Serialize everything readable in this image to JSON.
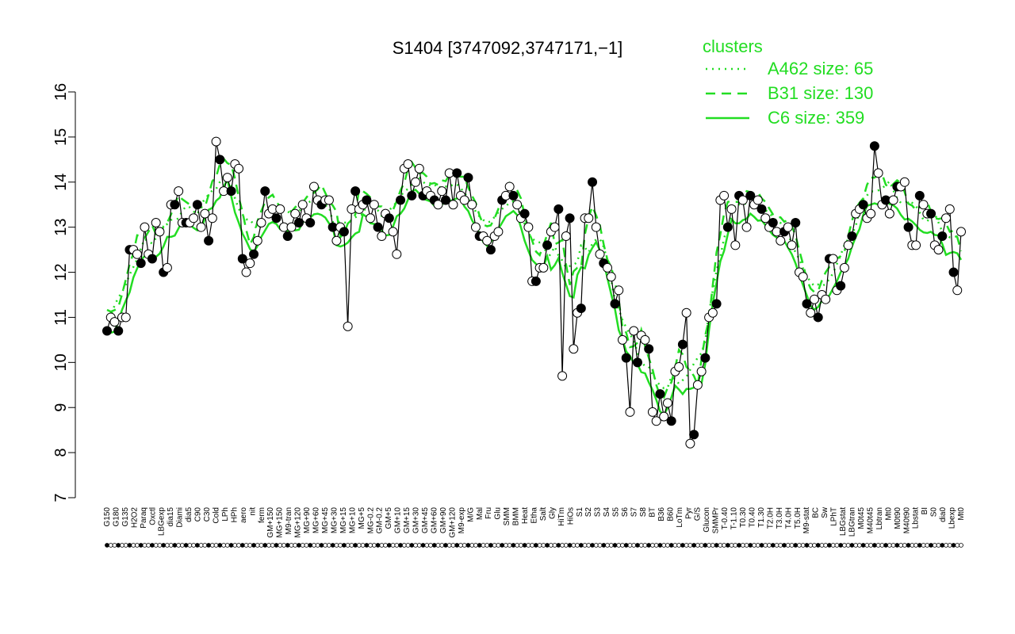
{
  "chart_data": {
    "type": "line",
    "title": "S1404 [3747092,3747171,−1]",
    "ylim": [
      7,
      16
    ],
    "yticks": [
      "7",
      "8",
      "9",
      "10",
      "11",
      "12",
      "13",
      "14",
      "15",
      "16"
    ],
    "x_tick_labels": [
      "G150",
      "G180",
      "G135",
      "H2O2",
      "Paraq",
      "Oxctl",
      "LBGexp",
      "dia15",
      "Diami",
      "dia5",
      "C90",
      "C30",
      "Cold",
      "LPh",
      "HPh",
      "aero",
      "nit",
      "ferm",
      "GM+150",
      "MG+150",
      "M9-tran",
      "MG+120",
      "MG+90",
      "MG+60",
      "MG+45",
      "MG+30",
      "MG+15",
      "MG+10",
      "MG+5",
      "MG-0.2",
      "GM-0.2",
      "GM+5",
      "GM+10",
      "GM+15",
      "GM+30",
      "GM+45",
      "GM+60",
      "GM+90",
      "GM+120",
      "M9-exp",
      "M/G",
      "Mal",
      "Fru",
      "Glu",
      "SMM",
      "BMM",
      "Heat",
      "Etha",
      "Salt",
      "Gly",
      "HiTm",
      "HiOs",
      "S1",
      "S2",
      "S3",
      "S4",
      "S5",
      "S6",
      "S7",
      "S8",
      "BT",
      "B36",
      "B60",
      "LoTm",
      "Pyr",
      "G/S",
      "Glucon",
      "SMMPr",
      "T-0.40",
      "T-1.10",
      "T0.30",
      "T0.40",
      "T1.30",
      "T2.0H",
      "T3.0H",
      "T4.0H",
      "T5.0H",
      "M9-stat",
      "BC",
      "Sw",
      "LPhT",
      "LBGstat",
      "LBGtran",
      "M0t45",
      "M40t45",
      "Lbtran",
      "Mt0",
      "M0t90",
      "M40t90",
      "Lbstat",
      "BI",
      "S0",
      "dia0",
      "Lbexp",
      "Mt0"
    ],
    "series": [
      {
        "name": "A462 size: 65",
        "style": "dotted",
        "color": "#22dd22"
      },
      {
        "name": "B31 size: 130",
        "style": "dashed",
        "color": "#22dd22"
      },
      {
        "name": "C6 size: 359",
        "style": "solid",
        "color": "#22dd22"
      }
    ],
    "point_values": [
      10.7,
      11.0,
      10.9,
      10.7,
      11.0,
      11.0,
      12.5,
      12.5,
      12.4,
      12.2,
      13.0,
      12.4,
      12.3,
      13.1,
      12.9,
      12.0,
      12.1,
      13.5,
      13.5,
      13.8,
      13.1,
      13.1,
      13.1,
      13.2,
      13.5,
      13.0,
      13.3,
      12.7,
      13.2,
      14.9,
      14.5,
      13.8,
      14.1,
      13.8,
      14.4,
      14.3,
      12.3,
      12.0,
      12.2,
      12.4,
      12.7,
      13.1,
      13.8,
      13.3,
      13.4,
      13.2,
      13.4,
      13.0,
      12.8,
      13.0,
      13.3,
      13.1,
      13.5,
      13.2,
      13.1,
      13.9,
      13.6,
      13.5,
      13.6,
      13.6,
      13.0,
      12.7,
      13.0,
      12.9,
      10.8,
      13.4,
      13.8,
      13.4,
      13.5,
      13.6,
      13.2,
      13.5,
      13.0,
      12.8,
      13.3,
      13.2,
      12.9,
      12.4,
      13.6,
      14.3,
      14.4,
      13.7,
      14.0,
      14.3,
      13.7,
      13.8,
      13.7,
      13.6,
      13.5,
      13.8,
      13.6,
      14.2,
      13.5,
      14.2,
      13.7,
      13.6,
      14.1,
      13.5,
      13.0,
      12.8,
      12.8,
      12.7,
      12.5,
      12.8,
      12.9,
      13.6,
      13.7,
      13.9,
      13.7,
      13.5,
      13.2,
      13.3,
      13.0,
      11.8,
      11.8,
      12.1,
      12.1,
      12.6,
      12.9,
      13.0,
      13.4,
      9.7,
      12.8,
      13.2,
      10.3,
      11.1,
      11.2,
      13.2,
      13.2,
      14.0,
      13.0,
      12.4,
      12.2,
      12.1,
      11.9,
      11.3,
      11.6,
      10.5,
      10.1,
      8.9,
      10.7,
      10.0,
      10.6,
      10.5,
      10.3,
      8.9,
      8.7,
      9.3,
      8.8,
      9.1,
      8.7,
      9.8,
      9.9,
      10.4,
      11.1,
      8.2,
      8.4,
      9.5,
      9.8,
      10.1,
      11.0,
      11.1,
      11.3,
      13.6,
      13.7,
      13.0,
      13.4,
      12.6,
      13.7,
      13.6,
      13.0,
      13.7,
      13.5,
      13.6,
      13.4,
      13.2,
      13.0,
      13.1,
      12.9,
      12.7,
      12.9,
      13.0,
      12.6,
      13.1,
      12.0,
      11.9,
      11.3,
      11.1,
      11.4,
      11.0,
      11.5,
      11.4,
      12.3,
      12.3,
      11.6,
      11.7,
      12.1,
      12.6,
      12.8,
      13.3,
      13.4,
      13.5,
      13.2,
      13.3,
      14.8,
      14.2,
      13.5,
      13.6,
      13.3,
      13.6,
      13.9,
      13.9,
      14.0,
      13.0,
      12.6,
      12.6,
      13.7,
      13.5,
      13.3,
      13.3,
      12.6,
      12.5,
      12.8,
      13.2,
      13.4,
      12.0,
      11.6,
      12.9
    ]
  }
}
